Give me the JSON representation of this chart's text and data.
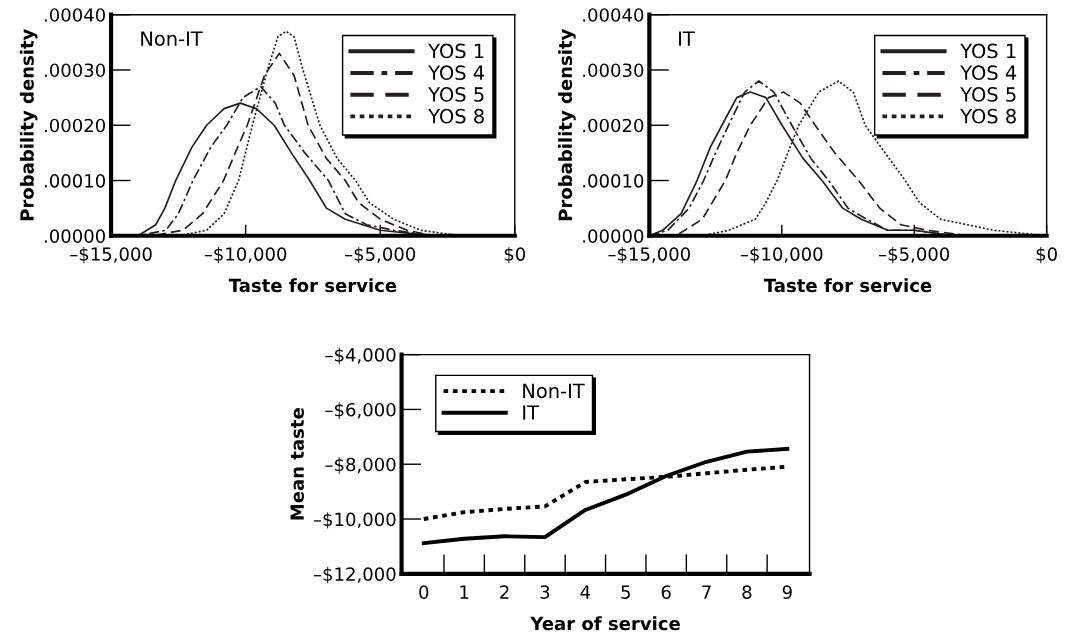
{
  "chart_data": [
    {
      "type": "line",
      "annotations": [
        "Non-IT"
      ],
      "xlabel": "Taste for service",
      "ylabel": "Probability density",
      "xlim": [
        -15000,
        0
      ],
      "xticks": [
        {
          "value": -15000,
          "label": "–$15,000"
        },
        {
          "value": -10000,
          "label": "–$10,000"
        },
        {
          "value": -5000,
          "label": "–$5,000"
        },
        {
          "value": 0,
          "label": "$0"
        }
      ],
      "ylim": [
        0,
        0.0004
      ],
      "yticks": [
        {
          "value": 0,
          "label": ".00000"
        },
        {
          "value": 0.0001,
          "label": ".00010"
        },
        {
          "value": 0.0002,
          "label": ".00020"
        },
        {
          "value": 0.0003,
          "label": ".00030"
        },
        {
          "value": 0.0004,
          "label": ".00040"
        }
      ],
      "legend": "top right",
      "grid": false,
      "series": [
        {
          "name": "YOS 1",
          "color": "#231f20",
          "line_style": "solid",
          "x": [
            -15000,
            -14000,
            -13340,
            -13000,
            -12600,
            -12000,
            -11450,
            -10800,
            -10200,
            -9600,
            -8940,
            -8300,
            -7620,
            -7000,
            -6300,
            -5000,
            -3000,
            0
          ],
          "values": [
            0,
            0,
            2e-05,
            5e-05,
            0.0001,
            0.00016,
            0.0002,
            0.00023,
            0.00024,
            0.00023,
            0.0002,
            0.00015,
            0.0001,
            5e-05,
            3e-05,
            1e-05,
            0,
            0
          ]
        },
        {
          "name": "YOS 4",
          "color": "#231f20",
          "line_style": "dashdot",
          "x": [
            -15000,
            -14000,
            -12960,
            -12500,
            -11956,
            -11300,
            -10700,
            -10100,
            -9440,
            -8900,
            -8560,
            -7800,
            -6925,
            -6300,
            -5500,
            -4500,
            -3000,
            0
          ],
          "values": [
            0,
            0,
            1e-05,
            4e-05,
            0.0001,
            0.00016,
            0.0002,
            0.00025,
            0.00027,
            0.00024,
            0.0002,
            0.00015,
            0.0001,
            4e-05,
            2e-05,
            1e-05,
            0,
            0
          ]
        },
        {
          "name": "YOS 5",
          "color": "#231f20",
          "line_style": "dashed",
          "x": [
            -15000,
            -13500,
            -12330,
            -11600,
            -10820,
            -10300,
            -9940,
            -9300,
            -8750,
            -8200,
            -7680,
            -7000,
            -6300,
            -5800,
            -5000,
            -4000,
            -3000,
            0
          ],
          "values": [
            0,
            0,
            1e-05,
            4e-05,
            0.0001,
            0.00016,
            0.0002,
            0.00029,
            0.00033,
            0.00029,
            0.0002,
            0.00014,
            0.0001,
            6e-05,
            3e-05,
            1e-05,
            0,
            0
          ]
        },
        {
          "name": "YOS 8",
          "color": "#231f20",
          "line_style": "dotted",
          "x": [
            -15000,
            -12500,
            -11450,
            -10800,
            -10260,
            -9750,
            -9190,
            -8800,
            -8500,
            -8200,
            -7870,
            -7240,
            -6600,
            -5920,
            -5400,
            -4500,
            -3500,
            -2000,
            0
          ],
          "values": [
            0,
            0,
            1e-05,
            4e-05,
            0.0001,
            0.0002,
            0.0003,
            0.00036,
            0.00037,
            0.00036,
            0.0003,
            0.0002,
            0.00014,
            0.0001,
            6e-05,
            3e-05,
            1e-05,
            0,
            0
          ]
        }
      ]
    },
    {
      "type": "line",
      "annotations": [
        "IT"
      ],
      "xlabel": "Taste for service",
      "ylabel": "Probability density",
      "xlim": [
        -15000,
        0
      ],
      "xticks": [
        {
          "value": -15000,
          "label": "–$15,000"
        },
        {
          "value": -10000,
          "label": "–$10,000"
        },
        {
          "value": -5000,
          "label": "–$5,000"
        },
        {
          "value": 0,
          "label": "$0"
        }
      ],
      "ylim": [
        0,
        0.0004
      ],
      "yticks": [
        {
          "value": 0,
          "label": ".00000"
        },
        {
          "value": 0.0001,
          "label": ".00010"
        },
        {
          "value": 0.0002,
          "label": ".00020"
        },
        {
          "value": 0.0003,
          "label": ".00030"
        },
        {
          "value": 0.0004,
          "label": ".00040"
        }
      ],
      "legend": "top right",
      "grid": false,
      "series": [
        {
          "name": "YOS 1",
          "color": "#231f20",
          "line_style": "solid",
          "x": [
            -15000,
            -14500,
            -13800,
            -13200,
            -12700,
            -12260,
            -11700,
            -11190,
            -10600,
            -9990,
            -9200,
            -8480,
            -7700,
            -7000,
            -6000,
            -5000,
            -3500,
            0
          ],
          "values": [
            0,
            1e-05,
            4e-05,
            0.0001,
            0.00016,
            0.0002,
            0.00025,
            0.00026,
            0.00025,
            0.0002,
            0.00014,
            0.0001,
            5e-05,
            3e-05,
            1e-05,
            1e-05,
            0,
            0
          ]
        },
        {
          "name": "YOS 4",
          "color": "#231f20",
          "line_style": "dashdot",
          "x": [
            -15000,
            -14300,
            -13500,
            -12950,
            -12500,
            -12010,
            -11400,
            -10870,
            -10300,
            -9620,
            -8900,
            -8230,
            -7500,
            -6800,
            -6000,
            -5000,
            -3500,
            0
          ],
          "values": [
            0,
            1e-05,
            5e-05,
            0.0001,
            0.00015,
            0.0002,
            0.00026,
            0.00028,
            0.00026,
            0.0002,
            0.00014,
            0.0001,
            5e-05,
            3e-05,
            1e-05,
            1e-05,
            0,
            0
          ]
        },
        {
          "name": "YOS 5",
          "color": "#231f20",
          "line_style": "dashed",
          "x": [
            -15000,
            -14000,
            -13000,
            -12130,
            -11700,
            -11190,
            -10500,
            -9930,
            -9300,
            -8740,
            -8000,
            -7100,
            -6300,
            -5500,
            -4500,
            -3000,
            0
          ],
          "values": [
            0,
            0,
            3e-05,
            0.0001,
            0.00015,
            0.0002,
            0.00025,
            0.00026,
            0.00024,
            0.0002,
            0.00015,
            0.0001,
            5e-05,
            2e-05,
            1e-05,
            0,
            0
          ]
        },
        {
          "name": "YOS 8",
          "color": "#231f20",
          "line_style": "dotted",
          "x": [
            -15000,
            -13000,
            -12000,
            -11500,
            -11000,
            -10600,
            -10180,
            -9360,
            -8600,
            -7860,
            -7300,
            -6850,
            -6100,
            -5340,
            -4800,
            -4000,
            -3000,
            -2000,
            0
          ],
          "values": [
            0,
            0,
            1e-05,
            2e-05,
            3e-05,
            6e-05,
            0.0001,
            0.0002,
            0.00026,
            0.00028,
            0.00026,
            0.0002,
            0.00015,
            0.0001,
            6e-05,
            3e-05,
            2e-05,
            1e-05,
            0
          ]
        }
      ]
    },
    {
      "type": "line",
      "xlabel": "Year of service",
      "ylabel": "Mean taste",
      "categories": [
        "0",
        "1",
        "2",
        "3",
        "4",
        "5",
        "6",
        "7",
        "8",
        "9"
      ],
      "ylim": [
        -12000,
        -4000
      ],
      "yticks": [
        {
          "value": -12000,
          "label": "–$12,000"
        },
        {
          "value": -10000,
          "label": "–$10,000"
        },
        {
          "value": -8000,
          "label": "–$8,000"
        },
        {
          "value": -6000,
          "label": "–$6,000"
        },
        {
          "value": -4000,
          "label": "–$4,000"
        }
      ],
      "legend": "top left",
      "grid": false,
      "series": [
        {
          "name": "Non-IT",
          "color": "#000000",
          "line_style": "dotted",
          "values": [
            -10000,
            -9750,
            -9630,
            -9540,
            -8650,
            -8550,
            -8460,
            -8330,
            -8200,
            -8090
          ]
        },
        {
          "name": "IT",
          "color": "#000000",
          "line_style": "solid",
          "values": [
            -10880,
            -10720,
            -10630,
            -10660,
            -9670,
            -9110,
            -8430,
            -7910,
            -7540,
            -7440
          ]
        }
      ]
    }
  ]
}
